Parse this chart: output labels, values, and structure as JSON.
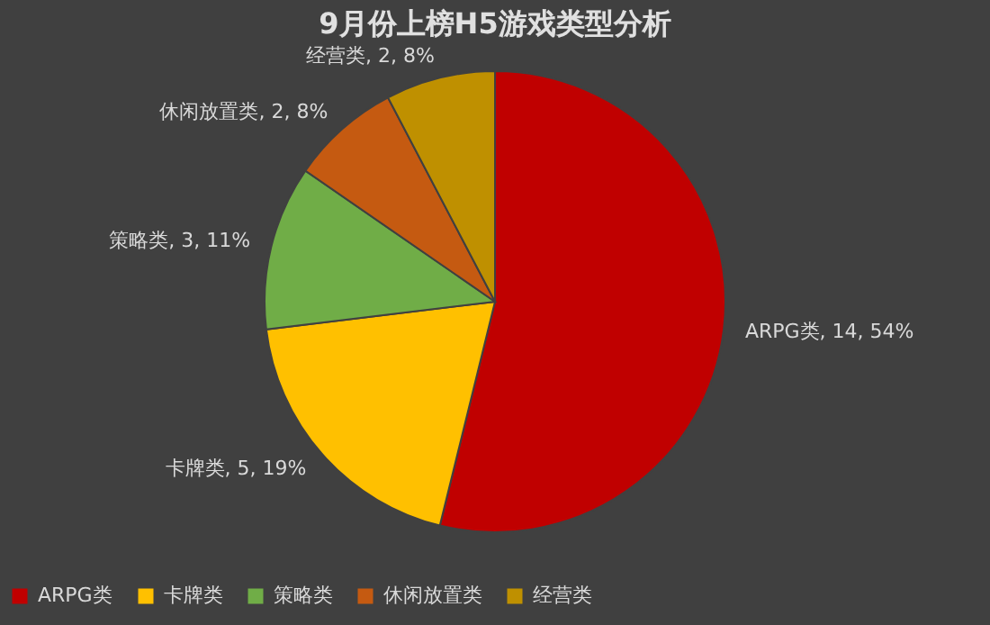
{
  "chart_data": {
    "type": "pie",
    "title": "9月份上榜H5游戏类型分析",
    "categories": [
      "ARPG类",
      "卡牌类",
      "策略类",
      "休闲放置类",
      "经营类"
    ],
    "values": [
      14,
      5,
      3,
      2,
      2
    ],
    "value_labels": [
      "ARPG类, 14, 54%",
      "卡牌类, 5, 19%",
      "策略类, 3, 11%",
      "休闲放置类, 2, 8%",
      "经营类, 2, 8%"
    ],
    "colors": [
      "#c00000",
      "#ffc000",
      "#70ad47",
      "#c55a11",
      "#bf9000"
    ],
    "legend": "bottom"
  }
}
